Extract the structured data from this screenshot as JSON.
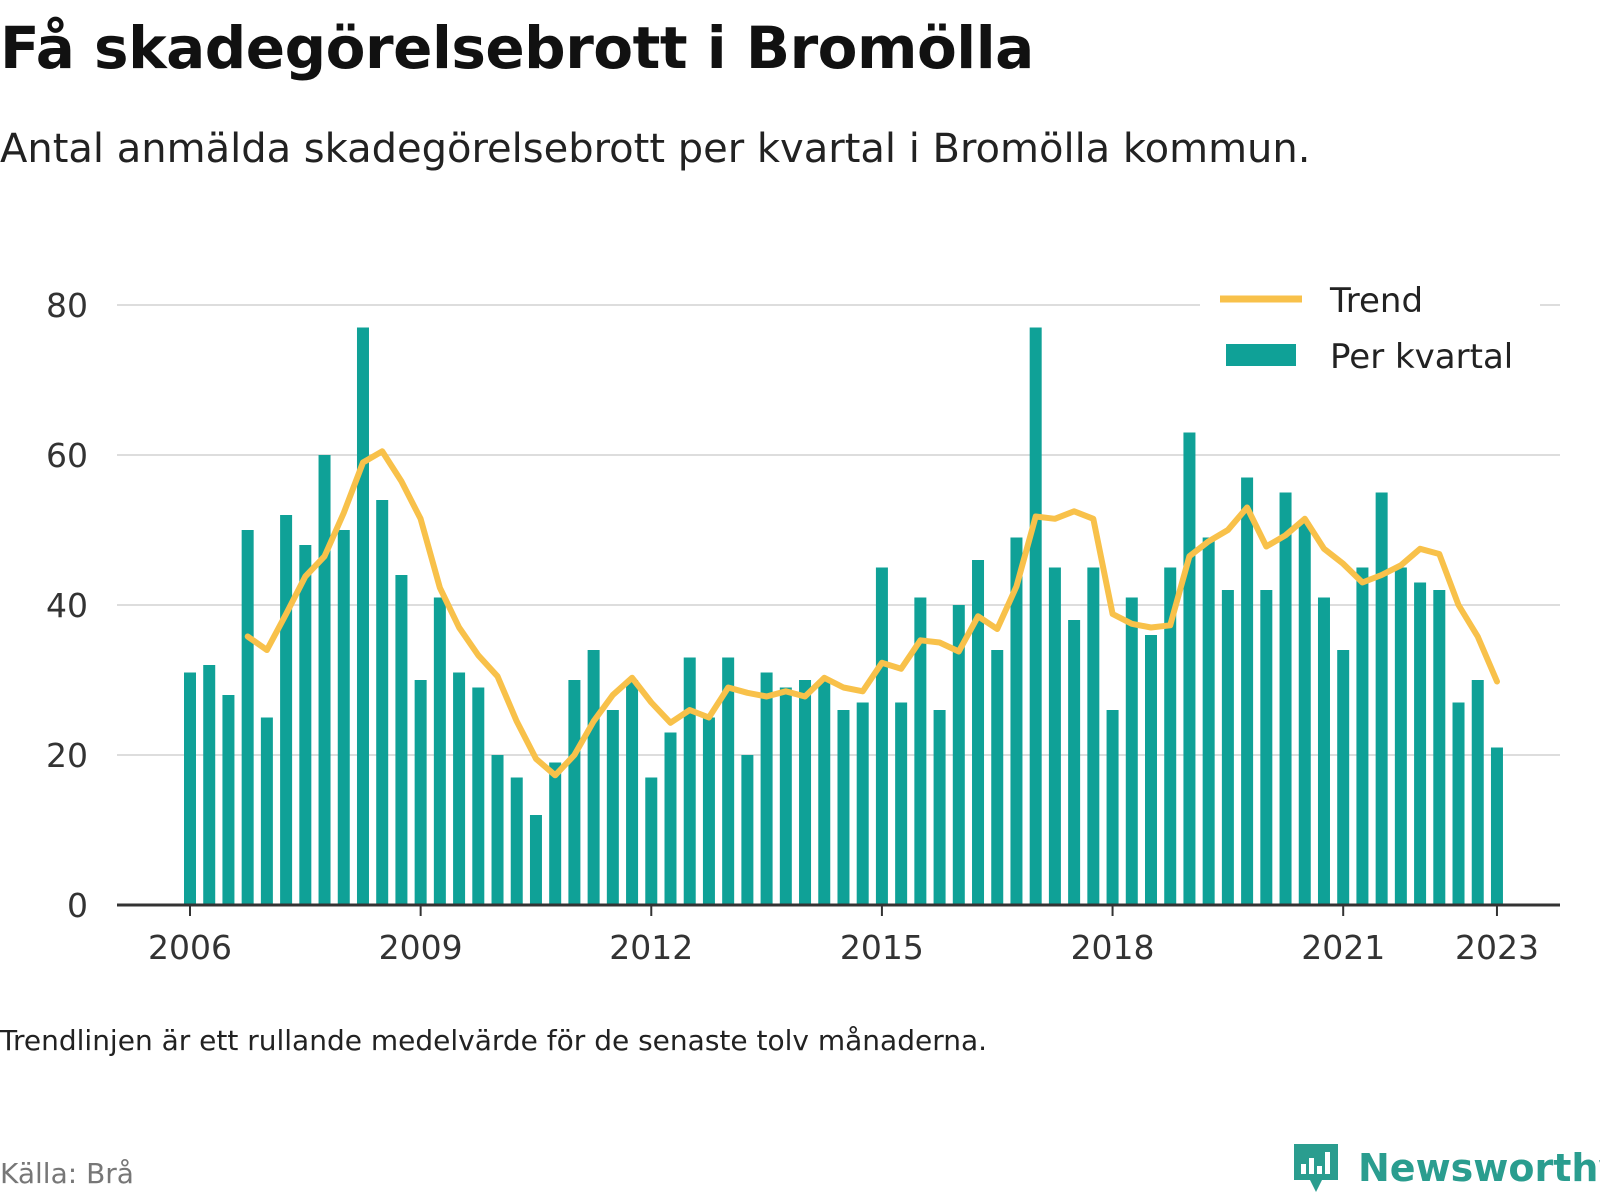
{
  "title": "Få skadegörelsebrott i Bromölla",
  "subtitle": "Antal anmälda skadegörelsebrott per kvartal i Bromölla kommun.",
  "note": "Trendlinjen är ett rullande medelvärde för de senaste tolv månaderna.",
  "source": "Källa: Brå",
  "brand": "Newsworthy",
  "colors": {
    "bars": "#0fa197",
    "trend": "#f8c14a",
    "grid": "#dddddd",
    "axis": "#333333",
    "brand": "#2a9d8f"
  },
  "chart_data": {
    "type": "bar",
    "ylim": [
      0,
      80
    ],
    "yticks": [
      0,
      20,
      40,
      60,
      80
    ],
    "xticks": [
      "2006",
      "2009",
      "2012",
      "2015",
      "2018",
      "2021",
      "2023"
    ],
    "grid": true,
    "legend_position": "top-right",
    "categories": [
      "2006 Q1",
      "2006 Q2",
      "2006 Q3",
      "2006 Q4",
      "2007 Q1",
      "2007 Q2",
      "2007 Q3",
      "2007 Q4",
      "2008 Q1",
      "2008 Q2",
      "2008 Q3",
      "2008 Q4",
      "2009 Q1",
      "2009 Q2",
      "2009 Q3",
      "2009 Q4",
      "2010 Q1",
      "2010 Q2",
      "2010 Q3",
      "2010 Q4",
      "2011 Q1",
      "2011 Q2",
      "2011 Q3",
      "2011 Q4",
      "2012 Q1",
      "2012 Q2",
      "2012 Q3",
      "2012 Q4",
      "2013 Q1",
      "2013 Q2",
      "2013 Q3",
      "2013 Q4",
      "2014 Q1",
      "2014 Q2",
      "2014 Q3",
      "2014 Q4",
      "2015 Q1",
      "2015 Q2",
      "2015 Q3",
      "2015 Q4",
      "2016 Q1",
      "2016 Q2",
      "2016 Q3",
      "2016 Q4",
      "2017 Q1",
      "2017 Q2",
      "2017 Q3",
      "2017 Q4",
      "2018 Q1",
      "2018 Q2",
      "2018 Q3",
      "2018 Q4",
      "2019 Q1",
      "2019 Q2",
      "2019 Q3",
      "2019 Q4",
      "2020 Q1",
      "2020 Q2",
      "2020 Q3",
      "2020 Q4",
      "2021 Q1",
      "2021 Q2",
      "2021 Q3",
      "2021 Q4",
      "2022 Q1",
      "2022 Q2",
      "2022 Q3",
      "2022 Q4",
      "2023 Q1"
    ],
    "series": [
      {
        "name": "Per kvartal",
        "kind": "bar",
        "values": [
          31,
          32,
          28,
          50,
          25,
          52,
          48,
          60,
          50,
          77,
          54,
          44,
          30,
          41,
          31,
          29,
          20,
          17,
          12,
          19,
          30,
          34,
          26,
          30,
          17,
          23,
          33,
          25,
          33,
          20,
          31,
          29,
          30,
          30,
          26,
          27,
          45,
          27,
          41,
          26,
          40,
          46,
          34,
          49,
          77,
          45,
          38,
          45,
          26,
          41,
          36,
          45,
          63,
          49,
          42,
          57,
          42,
          55,
          51,
          41,
          34,
          45,
          55,
          45,
          43,
          42,
          27,
          30,
          21
        ]
      },
      {
        "name": "Trend",
        "kind": "line",
        "values": [
          null,
          null,
          null,
          35.8,
          34,
          38.8,
          43.8,
          46.5,
          52.3,
          59,
          60.5,
          56.5,
          51.5,
          42.3,
          37,
          33.3,
          30.5,
          24.5,
          19.5,
          17.3,
          20,
          24.5,
          28,
          30.3,
          27,
          24.3,
          26,
          25,
          29,
          28.3,
          27.8,
          28.5,
          27.8,
          30.3,
          29,
          28.5,
          32.3,
          31.5,
          35.3,
          35,
          33.8,
          38.5,
          36.8,
          42.5,
          51.8,
          51.5,
          52.5,
          51.5,
          38.8,
          37.5,
          37,
          37.3,
          46.5,
          48.5,
          50,
          53,
          47.8,
          49.3,
          51.5,
          47.5,
          45.5,
          43,
          44,
          45.3,
          47.5,
          46.8,
          40,
          35.8,
          29.8
        ]
      }
    ]
  }
}
